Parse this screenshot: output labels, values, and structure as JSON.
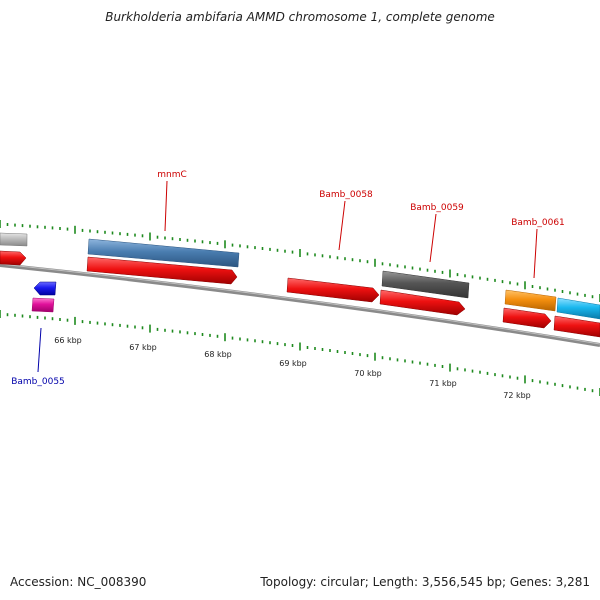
{
  "title": "Burkholderia ambifaria AMMD chromosome 1, complete genome",
  "footer": {
    "accession": "Accession: NC_008390",
    "summary": "Topology: circular; Length: 3,556,545 bp; Genes: 3,281"
  },
  "ruler": {
    "labels": [
      "66 kbp",
      "67 kbp",
      "68 kbp",
      "69 kbp",
      "70 kbp",
      "71 kbp",
      "72 kbp"
    ]
  },
  "gene_labels": {
    "mnmC": "mnmC",
    "bamb_0058": "Bamb_0058",
    "bamb_0059": "Bamb_0059",
    "bamb_0061": "Bamb_0061",
    "bamb_0055": "Bamb_0055"
  },
  "colors": {
    "forward_red": "#ee1111",
    "steel_blue": "#4a7db0",
    "dark_gray": "#555555",
    "light_gray": "#bbbbbb",
    "orange": "#f5900f",
    "cyan": "#1ab8ef",
    "blue": "#1a1aee",
    "magenta": "#e0109a",
    "tick_green": "#1e8a1e",
    "label_red": "#cc0000",
    "label_blue": "#0000aa"
  }
}
